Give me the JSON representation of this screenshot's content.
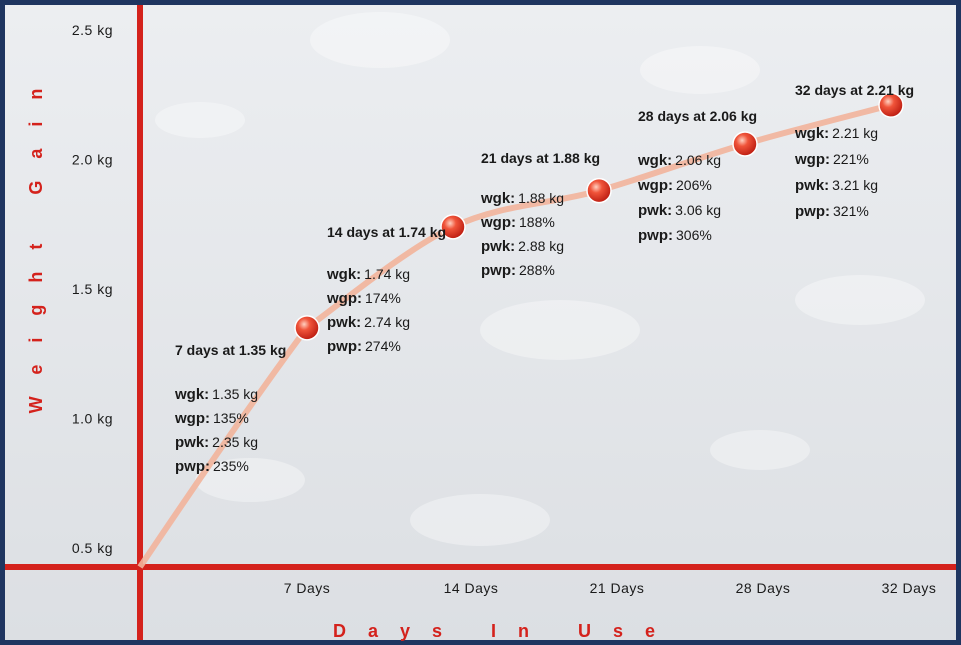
{
  "chart_data": {
    "type": "line",
    "x_label": "Days In Use",
    "y_label": "Weight Gain",
    "categories": [
      "7 Days",
      "14 Days",
      "21 Days",
      "28 Days",
      "32 Days"
    ],
    "values": [
      1.35,
      1.74,
      1.88,
      2.06,
      2.21
    ],
    "color": "#e8331f",
    "line_color": "#f2b49b",
    "ylim": [
      0.5,
      2.5
    ],
    "yticks": [
      {
        "value": 0.5,
        "label": "0.5 kg"
      },
      {
        "value": 1.0,
        "label": "1.0 kg"
      },
      {
        "value": 1.5,
        "label": "1.5 kg"
      },
      {
        "value": 2.0,
        "label": "2.0 kg"
      },
      {
        "value": 2.5,
        "label": "2.5 kg"
      }
    ],
    "grid": false,
    "annotations": [
      {
        "title": "7 days at 1.35 kg",
        "lines": [
          [
            "wgk:",
            "1.35 kg"
          ],
          [
            "wgp:",
            "135%"
          ],
          [
            "pwk:",
            "2.35 kg"
          ],
          [
            "pwp:",
            "235%"
          ]
        ]
      },
      {
        "title": "14 days at 1.74 kg",
        "lines": [
          [
            "wgk:",
            "1.74 kg"
          ],
          [
            "wgp:",
            "174%"
          ],
          [
            "pwk:",
            "2.74 kg"
          ],
          [
            "pwp:",
            "274%"
          ]
        ]
      },
      {
        "title": "21 days at 1.88 kg",
        "lines": [
          [
            "wgk:",
            "1.88 kg"
          ],
          [
            "wgp:",
            "188%"
          ],
          [
            "pwk:",
            "2.88 kg"
          ],
          [
            "pwp:",
            "288%"
          ]
        ]
      },
      {
        "title": "28 days at 2.06 kg",
        "lines": [
          [
            "wgk:",
            "2.06 kg"
          ],
          [
            "wgp:",
            "206%"
          ],
          [
            "pwk:",
            "3.06 kg"
          ],
          [
            "pwp:",
            "306%"
          ]
        ]
      },
      {
        "title": "32 days at 2.21 kg",
        "lines": [
          [
            "wgk:",
            "2.21 kg"
          ],
          [
            "wgp:",
            "221%"
          ],
          [
            "pwk:",
            "3.21 kg"
          ],
          [
            "pwp:",
            "321%"
          ]
        ]
      }
    ]
  }
}
